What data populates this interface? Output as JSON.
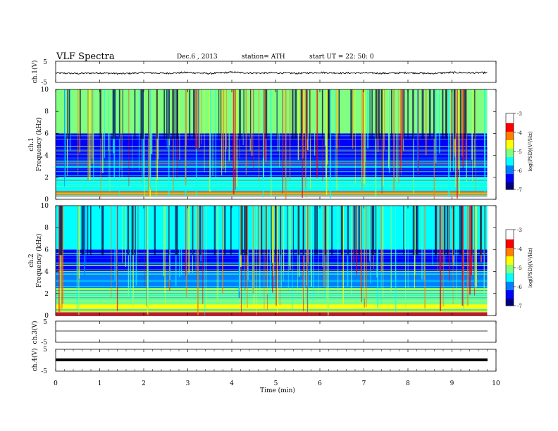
{
  "header": {
    "title": "VLF  Spectra",
    "date": "Dec.6 , 2013",
    "station": "station= ATH",
    "start": "start  UT  =   22: 50: 0"
  },
  "chart_data": [
    {
      "type": "line",
      "panel": "ch1",
      "ylabel": "ch.1(V)",
      "ylim": [
        -5,
        5
      ],
      "y_ticks": [
        "5",
        "-5"
      ],
      "series": [
        {
          "values_note": "",
          "x": [
            0,
            0.5,
            1,
            1.5,
            2,
            2.5,
            3,
            3.5,
            4,
            4.5,
            5,
            5.5,
            6,
            6.5,
            7,
            7.5,
            8,
            8.5,
            9,
            9.5,
            9.8
          ],
          "values": [
            -0.6,
            -0.8,
            -0.5,
            -0.9,
            -0.4,
            -0.7,
            -0.3,
            -0.8,
            -0.2,
            -0.6,
            -0.5,
            -0.7,
            -0.3,
            -0.6,
            -0.5,
            -0.7,
            -0.4,
            -0.8,
            -0.3,
            -0.5,
            -0.4
          ]
        }
      ]
    },
    {
      "type": "heatmap",
      "panel": "ch.1",
      "ylabel": "Frequency  (kHz)",
      "channel_label": "ch.1",
      "ylim": [
        0,
        10
      ],
      "y_ticks": [
        "0",
        "2",
        "4",
        "6",
        "8",
        "10"
      ],
      "xlim": [
        0,
        10
      ],
      "colorbar": {
        "label": "log(PSD)(V²/Hz)",
        "ticks": [
          "-3",
          "-4",
          "-5",
          "-6",
          "-7"
        ],
        "range": [
          -7,
          -3
        ]
      },
      "bands_khz": [
        {
          "from": 0.0,
          "to": 0.3,
          "level": -3.2
        },
        {
          "from": 0.3,
          "to": 0.8,
          "level": -4.0
        },
        {
          "from": 0.8,
          "to": 2.0,
          "level": -5.3
        },
        {
          "from": 2.0,
          "to": 4.0,
          "level": -6.5
        },
        {
          "from": 4.0,
          "to": 6.0,
          "level": -6.2
        },
        {
          "from": 6.0,
          "to": 10.0,
          "level": -5.2
        }
      ]
    },
    {
      "type": "heatmap",
      "panel": "ch.2",
      "ylabel": "Frequency  (kHz)",
      "channel_label": "ch.2",
      "ylim": [
        0,
        10
      ],
      "y_ticks": [
        "0",
        "2",
        "4",
        "6",
        "8",
        "10"
      ],
      "xlim": [
        0,
        10
      ],
      "colorbar": {
        "label": "log(PSD)(V²/Hz)",
        "ticks": [
          "-3",
          "-4",
          "-5",
          "-6",
          "-7"
        ],
        "range": [
          -7,
          -3
        ]
      },
      "bands_khz": [
        {
          "from": 0.0,
          "to": 0.3,
          "level": -3.8
        },
        {
          "from": 0.3,
          "to": 1.0,
          "level": -4.5
        },
        {
          "from": 1.0,
          "to": 2.5,
          "level": -5.0
        },
        {
          "from": 2.5,
          "to": 4.0,
          "level": -5.8
        },
        {
          "from": 4.0,
          "to": 6.0,
          "level": -6.4
        },
        {
          "from": 6.0,
          "to": 10.0,
          "level": -5.6
        }
      ]
    },
    {
      "type": "line",
      "panel": "ch3",
      "ylabel": "ch.3(V)",
      "ylim": [
        -5,
        5
      ],
      "y_ticks": [
        "5",
        "-5"
      ],
      "series": [
        {
          "x": [
            0,
            9.8
          ],
          "values": [
            0,
            0
          ]
        }
      ]
    },
    {
      "type": "line",
      "panel": "ch4",
      "ylabel": "ch.4(V)",
      "ylim": [
        -5,
        5
      ],
      "y_ticks": [
        "5",
        "-5"
      ],
      "series": [
        {
          "x": [
            0,
            9.8
          ],
          "values": [
            0,
            0
          ]
        }
      ]
    }
  ],
  "xaxis": {
    "label": "Time  (min)",
    "ticks": [
      "0",
      "1",
      "2",
      "3",
      "4",
      "5",
      "6",
      "7",
      "8",
      "9",
      "10"
    ],
    "xlim": [
      0,
      10
    ]
  },
  "colors": {
    "colormap": [
      "#00007f",
      "#0000ff",
      "#0080ff",
      "#00ffff",
      "#80ff80",
      "#ffff00",
      "#ff8000",
      "#ff0000",
      "#ffffff"
    ]
  }
}
